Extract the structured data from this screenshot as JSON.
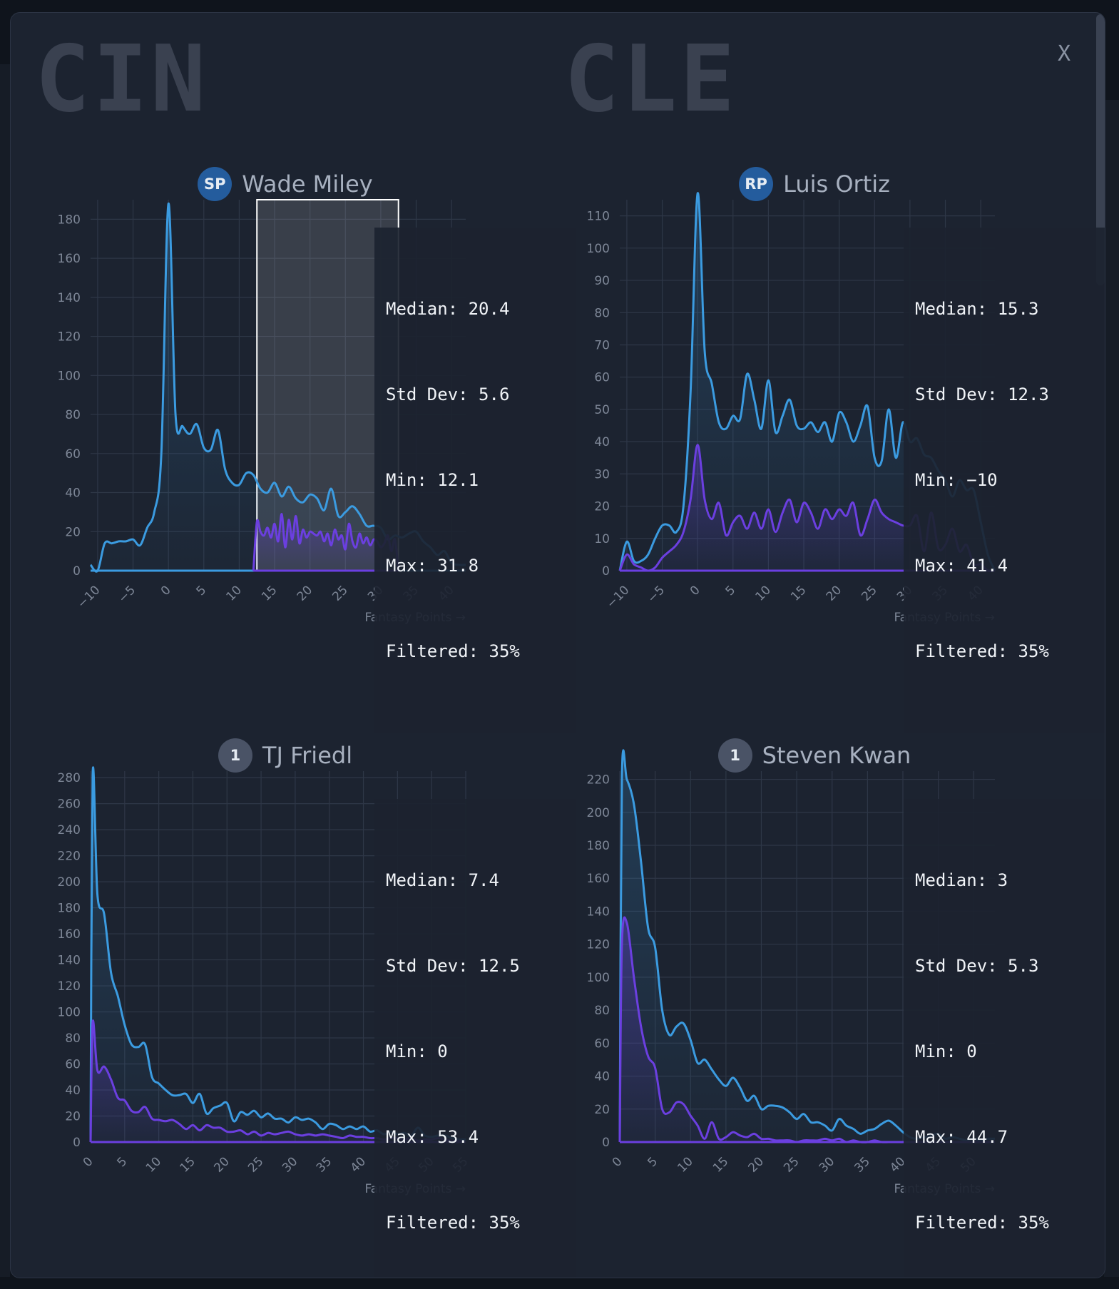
{
  "teams": {
    "left": "CIN",
    "right": "CLE"
  },
  "close_label": "X",
  "x_axis_label": "Fantasy Points →",
  "panels": [
    {
      "badge": "SP",
      "name": "Wade Miley",
      "stats": {
        "median": "Median: 20.4",
        "std": "Std Dev: 5.6",
        "min": "Min: 12.1",
        "max": "Max: 31.8",
        "filtered": "Filtered: 35%"
      }
    },
    {
      "badge": "RP",
      "name": "Luis Ortiz",
      "stats": {
        "median": "Median: 15.3",
        "std": "Std Dev: 12.3",
        "min": "Min: −10",
        "max": "Max: 41.4",
        "filtered": "Filtered: 35%"
      }
    },
    {
      "badge": "1",
      "name": "TJ Friedl",
      "stats": {
        "median": "Median: 7.4",
        "std": "Std Dev: 12.5",
        "min": "Min: 0",
        "max": "Max: 53.4",
        "filtered": "Filtered: 35%"
      }
    },
    {
      "badge": "1",
      "name": "Steven Kwan",
      "stats": {
        "median": "Median: 3",
        "std": "Std Dev: 5.3",
        "min": "Min: 0",
        "max": "Max: 44.7",
        "filtered": "Filtered: 35%"
      }
    }
  ],
  "colors": {
    "all": "#3b9be0",
    "filtered": "#6b3fe0",
    "grid": "#2e3747",
    "tick": "#7d8696"
  },
  "chart_data": [
    {
      "type": "line",
      "player": "Wade Miley",
      "xlim": [
        -11,
        42
      ],
      "ylim": [
        0,
        190
      ],
      "xticks": [
        -10,
        -5,
        0,
        5,
        10,
        15,
        20,
        25,
        30,
        35,
        40
      ],
      "yticks": [
        0,
        20,
        40,
        60,
        80,
        100,
        120,
        140,
        160,
        180
      ],
      "selection": [
        12.5,
        32.5
      ],
      "series": [
        {
          "name": "",
          "x": [
            -11,
            -10,
            -9,
            -8,
            -7,
            -6,
            -5,
            -4,
            -3,
            -2,
            -1,
            0,
            1,
            2,
            3,
            4,
            5,
            6,
            7,
            8,
            9,
            10,
            11,
            12,
            13,
            14,
            15,
            16,
            17,
            18,
            19,
            20,
            21,
            22,
            23,
            24,
            25,
            26,
            27,
            28,
            29,
            30,
            31,
            32,
            33,
            34,
            35,
            36,
            37,
            38,
            39,
            40,
            41,
            42
          ],
          "y": [
            3,
            0,
            14,
            14,
            15,
            15,
            16,
            13,
            22,
            30,
            60,
            188,
            80,
            74,
            70,
            75,
            63,
            62,
            72,
            52,
            45,
            44,
            50,
            49,
            42,
            40,
            45,
            38,
            43,
            37,
            35,
            39,
            37,
            31,
            42,
            28,
            30,
            33,
            29,
            23,
            23,
            22,
            16,
            18,
            17,
            19,
            20,
            15,
            12,
            8,
            10,
            4,
            3,
            3
          ]
        },
        {
          "name": "",
          "x": [
            12,
            12.5,
            13,
            13.5,
            14,
            14.5,
            15,
            15.5,
            16,
            16.5,
            17,
            17.5,
            18,
            18.5,
            19,
            19.5,
            20,
            20.5,
            21,
            21.5,
            22,
            22.5,
            23,
            23.5,
            24,
            24.5,
            25,
            25.5,
            26,
            26.5,
            27,
            27.5,
            28,
            28.5,
            29,
            29.5,
            30,
            30.5,
            31,
            31.5,
            32,
            32.5
          ],
          "y": [
            0,
            25,
            20,
            18,
            22,
            17,
            24,
            15,
            29,
            12,
            26,
            16,
            28,
            14,
            21,
            17,
            20,
            19,
            18,
            20,
            15,
            19,
            13,
            21,
            16,
            18,
            11,
            24,
            15,
            12,
            19,
            14,
            17,
            13,
            16,
            15,
            12,
            14,
            18,
            10,
            16,
            0
          ]
        }
      ]
    },
    {
      "type": "line",
      "player": "Luis Ortiz",
      "xlim": [
        -11,
        42
      ],
      "ylim": [
        0,
        115
      ],
      "xticks": [
        -10,
        -5,
        0,
        5,
        10,
        15,
        20,
        25,
        30,
        35,
        40
      ],
      "yticks": [
        0,
        10,
        20,
        30,
        40,
        50,
        60,
        70,
        80,
        90,
        100,
        110
      ],
      "series": [
        {
          "name": "",
          "x": [
            -11,
            -10,
            -9,
            -8,
            -7,
            -6,
            -5,
            -4,
            -3,
            -2,
            -1,
            0,
            1,
            2,
            3,
            4,
            5,
            6,
            7,
            8,
            9,
            10,
            11,
            12,
            13,
            14,
            15,
            16,
            17,
            18,
            19,
            20,
            21,
            22,
            23,
            24,
            25,
            26,
            27,
            28,
            29,
            30,
            31,
            32,
            33,
            34,
            35,
            36,
            37,
            38,
            39,
            40,
            41,
            42
          ],
          "y": [
            0,
            9,
            3,
            3,
            5,
            10,
            14,
            14,
            12,
            20,
            55,
            117,
            68,
            58,
            46,
            44,
            48,
            47,
            61,
            53,
            44,
            59,
            43,
            48,
            53,
            45,
            44,
            46,
            43,
            46,
            40,
            49,
            46,
            40,
            45,
            51,
            35,
            34,
            50,
            35,
            46,
            40,
            41,
            36,
            35,
            31,
            28,
            23,
            28,
            25,
            25,
            15,
            5,
            0
          ]
        },
        {
          "name": "",
          "x": [
            -11,
            -10,
            -9,
            -8,
            -7,
            -6,
            -5,
            -4,
            -3,
            -2,
            -1,
            0,
            1,
            2,
            3,
            4,
            5,
            6,
            7,
            8,
            9,
            10,
            11,
            12,
            13,
            14,
            15,
            16,
            17,
            18,
            19,
            20,
            21,
            22,
            23,
            24,
            25,
            26,
            27,
            28,
            29,
            30,
            31,
            32,
            33,
            34,
            35,
            36,
            37,
            38,
            39,
            40,
            41,
            42
          ],
          "y": [
            0,
            5,
            2,
            1,
            0,
            1,
            4,
            6,
            8,
            12,
            22,
            39,
            22,
            16,
            21,
            11,
            15,
            17,
            13,
            18,
            13,
            19,
            12,
            18,
            22,
            15,
            21,
            18,
            13,
            19,
            16,
            19,
            17,
            21,
            11,
            16,
            22,
            18,
            16,
            15,
            14,
            14,
            17,
            6,
            18,
            7,
            8,
            13,
            6,
            8,
            2,
            2,
            0,
            0
          ]
        }
      ]
    },
    {
      "type": "line",
      "player": "TJ Friedl",
      "xlim": [
        0,
        55
      ],
      "ylim": [
        0,
        285
      ],
      "xticks": [
        0,
        5,
        10,
        15,
        20,
        25,
        30,
        35,
        40,
        45,
        50,
        55
      ],
      "yticks": [
        0,
        20,
        40,
        60,
        80,
        100,
        120,
        140,
        160,
        180,
        200,
        220,
        240,
        260,
        280
      ],
      "series": [
        {
          "name": "",
          "x": [
            0,
            0.3,
            1,
            2,
            3,
            4,
            5,
            6,
            7,
            8,
            9,
            10,
            11,
            12,
            13,
            14,
            15,
            16,
            17,
            18,
            19,
            20,
            21,
            22,
            23,
            24,
            25,
            26,
            27,
            28,
            29,
            30,
            31,
            32,
            33,
            34,
            35,
            36,
            37,
            38,
            39,
            40,
            41,
            42,
            43,
            44,
            45,
            46,
            47,
            48,
            49,
            50,
            51,
            52,
            53,
            54,
            55
          ],
          "y": [
            0,
            282,
            190,
            175,
            130,
            112,
            90,
            75,
            73,
            75,
            50,
            45,
            40,
            36,
            36,
            37,
            30,
            37,
            22,
            26,
            28,
            30,
            16,
            23,
            21,
            24,
            19,
            22,
            18,
            18,
            15,
            19,
            17,
            18,
            15,
            10,
            14,
            13,
            10,
            12,
            10,
            12,
            8,
            9,
            6,
            8,
            6,
            7,
            5,
            11,
            5,
            4,
            5,
            5,
            3,
            2,
            2
          ]
        },
        {
          "name": "",
          "x": [
            0,
            0.3,
            1,
            2,
            3,
            4,
            5,
            6,
            7,
            8,
            9,
            10,
            11,
            12,
            13,
            14,
            15,
            16,
            17,
            18,
            19,
            20,
            21,
            22,
            23,
            24,
            25,
            26,
            27,
            28,
            29,
            30,
            31,
            32,
            33,
            34,
            35,
            36,
            37,
            38,
            39,
            40,
            41,
            42,
            43,
            44,
            45,
            46,
            47,
            48,
            49,
            50,
            51,
            52,
            53,
            54,
            55
          ],
          "y": [
            0,
            92,
            55,
            58,
            48,
            34,
            32,
            24,
            23,
            27,
            18,
            17,
            16,
            17,
            14,
            10,
            13,
            9,
            13,
            11,
            11,
            8,
            8,
            9,
            6,
            8,
            5,
            7,
            6,
            7,
            8,
            6,
            5,
            6,
            5,
            6,
            5,
            4,
            3,
            5,
            4,
            4,
            3,
            3,
            2,
            3,
            3,
            2,
            3,
            1,
            2,
            2,
            3,
            2,
            1,
            1,
            0
          ]
        }
      ]
    },
    {
      "type": "line",
      "player": "Steven Kwan",
      "xlim": [
        0,
        53
      ],
      "ylim": [
        0,
        225
      ],
      "xticks": [
        0,
        5,
        10,
        15,
        20,
        25,
        30,
        35,
        40,
        45,
        50
      ],
      "yticks": [
        0,
        20,
        40,
        60,
        80,
        100,
        120,
        140,
        160,
        180,
        200,
        220
      ],
      "series": [
        {
          "name": "",
          "x": [
            0,
            0.3,
            1,
            2,
            3,
            4,
            5,
            6,
            7,
            8,
            9,
            10,
            11,
            12,
            13,
            14,
            15,
            16,
            17,
            18,
            19,
            20,
            21,
            22,
            23,
            24,
            25,
            26,
            27,
            28,
            29,
            30,
            31,
            32,
            33,
            34,
            35,
            36,
            37,
            38,
            39,
            40,
            41,
            42,
            43,
            44,
            45,
            46,
            47,
            48,
            49,
            50,
            51,
            52,
            53
          ],
          "y": [
            0,
            221,
            220,
            205,
            170,
            130,
            118,
            80,
            65,
            70,
            72,
            62,
            48,
            50,
            44,
            38,
            34,
            39,
            33,
            25,
            28,
            20,
            22,
            22,
            21,
            18,
            14,
            17,
            12,
            12,
            10,
            7,
            14,
            10,
            8,
            5,
            7,
            8,
            11,
            13,
            10,
            6,
            3,
            2,
            3,
            4,
            5,
            2,
            3,
            2,
            1,
            2,
            1,
            2,
            2
          ]
        },
        {
          "name": "",
          "x": [
            0,
            0.3,
            1,
            2,
            3,
            4,
            5,
            6,
            7,
            8,
            9,
            10,
            11,
            12,
            13,
            14,
            15,
            16,
            17,
            18,
            19,
            20,
            21,
            22,
            23,
            24,
            25,
            26,
            27,
            28,
            29,
            30,
            31,
            32,
            33,
            34,
            35,
            36,
            37,
            38,
            39,
            40,
            41,
            42,
            43,
            44,
            45,
            46,
            47,
            48,
            49,
            50,
            51,
            52,
            53
          ],
          "y": [
            0,
            120,
            133,
            100,
            70,
            52,
            45,
            20,
            18,
            24,
            23,
            16,
            10,
            2,
            12,
            2,
            3,
            6,
            4,
            3,
            5,
            2,
            2,
            1,
            1,
            1,
            0,
            1,
            1,
            1,
            2,
            1,
            2,
            0,
            1,
            0,
            0,
            1,
            0,
            0,
            0,
            0,
            0,
            0,
            0,
            0,
            0,
            0,
            0,
            0,
            0,
            0,
            0,
            0,
            0
          ]
        }
      ]
    }
  ]
}
